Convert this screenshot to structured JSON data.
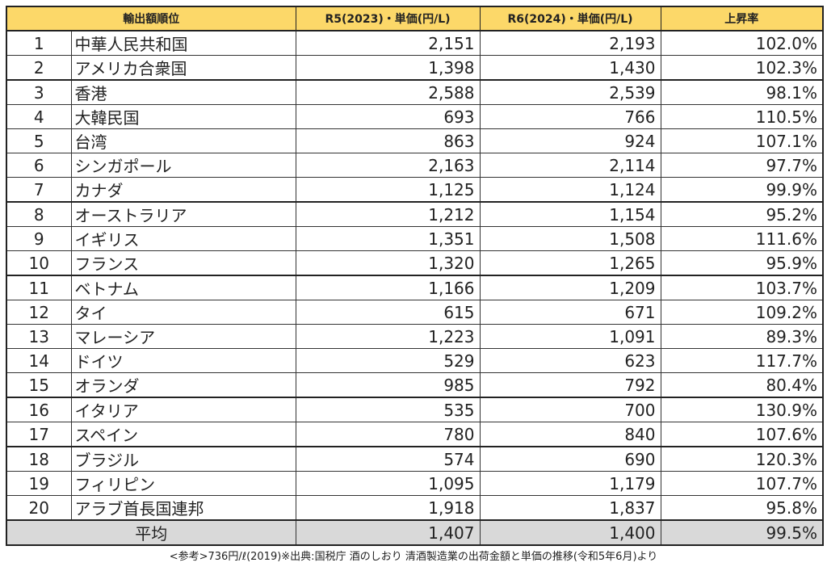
{
  "table": {
    "headers": {
      "rank": "輸出額順位",
      "r5": "R5(2023)・単価(円/L)",
      "r6": "R6(2024)・単価(円/L)",
      "rate": "上昇率"
    },
    "rows": [
      {
        "rank": "1",
        "country": "中華人民共和国",
        "r5": "2,151",
        "r6": "2,193",
        "rate": "102.0%"
      },
      {
        "rank": "2",
        "country": "アメリカ合衆国",
        "r5": "1,398",
        "r6": "1,430",
        "rate": "102.3%"
      },
      {
        "rank": "3",
        "country": "香港",
        "r5": "2,588",
        "r6": "2,539",
        "rate": "98.1%"
      },
      {
        "rank": "4",
        "country": "大韓民国",
        "r5": "693",
        "r6": "766",
        "rate": "110.5%"
      },
      {
        "rank": "5",
        "country": "台湾",
        "r5": "863",
        "r6": "924",
        "rate": "107.1%"
      },
      {
        "rank": "6",
        "country": "シンガポール",
        "r5": "2,163",
        "r6": "2,114",
        "rate": "97.7%"
      },
      {
        "rank": "7",
        "country": "カナダ",
        "r5": "1,125",
        "r6": "1,124",
        "rate": "99.9%"
      },
      {
        "rank": "8",
        "country": "オーストラリア",
        "r5": "1,212",
        "r6": "1,154",
        "rate": "95.2%"
      },
      {
        "rank": "9",
        "country": "イギリス",
        "r5": "1,351",
        "r6": "1,508",
        "rate": "111.6%"
      },
      {
        "rank": "10",
        "country": "フランス",
        "r5": "1,320",
        "r6": "1,265",
        "rate": "95.9%"
      },
      {
        "rank": "11",
        "country": "ベトナム",
        "r5": "1,166",
        "r6": "1,209",
        "rate": "103.7%"
      },
      {
        "rank": "12",
        "country": "タイ",
        "r5": "615",
        "r6": "671",
        "rate": "109.2%"
      },
      {
        "rank": "13",
        "country": "マレーシア",
        "r5": "1,223",
        "r6": "1,091",
        "rate": "89.3%"
      },
      {
        "rank": "14",
        "country": "ドイツ",
        "r5": "529",
        "r6": "623",
        "rate": "117.7%"
      },
      {
        "rank": "15",
        "country": "オランダ",
        "r5": "985",
        "r6": "792",
        "rate": "80.4%"
      },
      {
        "rank": "16",
        "country": "イタリア",
        "r5": "535",
        "r6": "700",
        "rate": "130.9%"
      },
      {
        "rank": "17",
        "country": "スペイン",
        "r5": "780",
        "r6": "840",
        "rate": "107.6%"
      },
      {
        "rank": "18",
        "country": "ブラジル",
        "r5": "574",
        "r6": "690",
        "rate": "120.3%"
      },
      {
        "rank": "19",
        "country": "フィリピン",
        "r5": "1,095",
        "r6": "1,179",
        "rate": "107.7%"
      },
      {
        "rank": "20",
        "country": "アラブ首長国連邦",
        "r5": "1,918",
        "r6": "1,837",
        "rate": "95.8%"
      }
    ],
    "average": {
      "label": "平均",
      "r5": "1,407",
      "r6": "1,400",
      "rate": "99.5%"
    }
  },
  "footnote": "<参考>736円/ℓ(2019)※出典:国税庁 酒のしおり 清酒製造業の出荷金額と単価の推移(令和5年6月)より",
  "colors": {
    "header_bg": "#fcd869",
    "average_bg": "#d9d9d9",
    "border": "#222222"
  }
}
